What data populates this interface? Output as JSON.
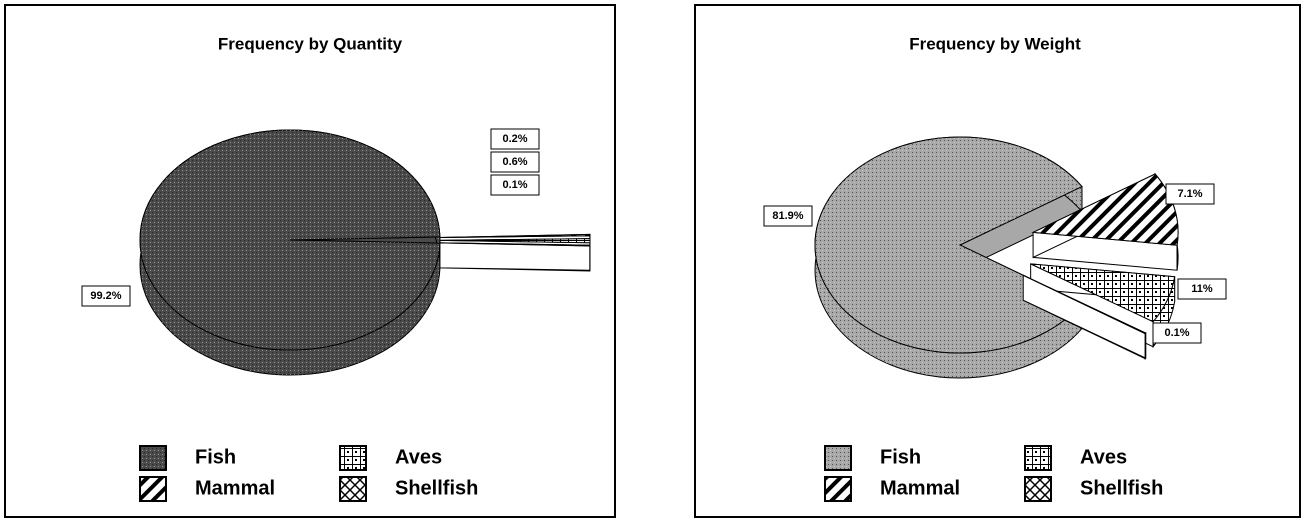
{
  "chart_data": [
    {
      "type": "pie",
      "title": "Frequency by Quantity",
      "categories": [
        "Fish",
        "Mammal",
        "Aves",
        "Shellfish"
      ],
      "values": [
        99.2,
        0.2,
        0.6,
        0.1
      ],
      "value_labels": [
        "99.2%",
        "0.2%",
        "0.6%",
        "0.1%"
      ],
      "colors": [
        "#4a4a4a",
        "#ffffff",
        "#ffffff",
        "#ffffff"
      ]
    },
    {
      "type": "pie",
      "title": "Frequency by Weight",
      "categories": [
        "Fish",
        "Mammal",
        "Aves",
        "Shellfish"
      ],
      "values": [
        81.9,
        11,
        7.1,
        0.1
      ],
      "value_labels": [
        "81.9%",
        "11%",
        "7.1%",
        "0.1%"
      ],
      "colors": [
        "#a8a8a8",
        "#ffffff",
        "#ffffff",
        "#ffffff"
      ]
    }
  ]
}
